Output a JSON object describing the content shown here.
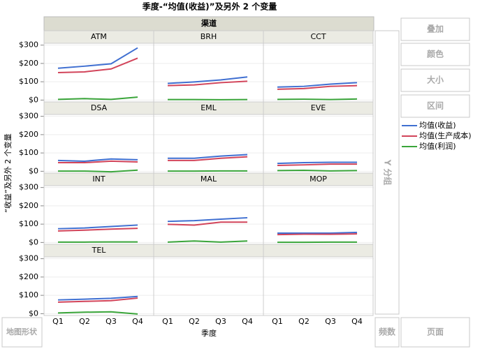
{
  "chart_data": {
    "type": "line",
    "title": "季度-“均值(收益)”及另外 2 个变量",
    "facet_label": "渠道",
    "x_label": "季度",
    "y_label": "“收益”及另外 2 个变量",
    "categories": [
      "Q1",
      "Q2",
      "Q3",
      "Q4"
    ],
    "ylim": [
      -10,
      310
    ],
    "yticks": [
      {
        "value": 0,
        "label": "$0"
      },
      {
        "value": 100,
        "label": "$100"
      },
      {
        "value": 200,
        "label": "$200"
      },
      {
        "value": 300,
        "label": "$300"
      }
    ],
    "series": [
      {
        "name": "均值(收益)",
        "color": "#3f6fd1"
      },
      {
        "name": "均值(生产成本)",
        "color": "#d2445a"
      },
      {
        "name": "均值(利润)",
        "color": "#3aa53a"
      }
    ],
    "panels": [
      {
        "name": "ATM",
        "values": [
          [
            174,
            185,
            198,
            285
          ],
          [
            150,
            154,
            170,
            229
          ],
          [
            4,
            8,
            4,
            16
          ]
        ]
      },
      {
        "name": "BRH",
        "values": [
          [
            91,
            99,
            110,
            126
          ],
          [
            79,
            83,
            95,
            103
          ],
          [
            3,
            3,
            2,
            3
          ]
        ]
      },
      {
        "name": "CCT",
        "values": [
          [
            71,
            75,
            87,
            95
          ],
          [
            59,
            63,
            75,
            79
          ],
          [
            4,
            5,
            3,
            6
          ]
        ]
      },
      {
        "name": "DSA",
        "values": [
          [
            59,
            55,
            67,
            63
          ],
          [
            47,
            47,
            55,
            51
          ],
          [
            1,
            1,
            -3,
            6
          ]
        ]
      },
      {
        "name": "EML",
        "values": [
          [
            71,
            71,
            83,
            91
          ],
          [
            59,
            59,
            71,
            79
          ],
          [
            1,
            1,
            2,
            2
          ]
        ]
      },
      {
        "name": "EVE",
        "values": [
          [
            43,
            47,
            49,
            49
          ],
          [
            32,
            35,
            39,
            39
          ],
          [
            4,
            5,
            2,
            4
          ]
        ]
      },
      {
        "name": "INT",
        "values": [
          [
            75,
            79,
            87,
            95
          ],
          [
            63,
            67,
            73,
            77
          ],
          [
            2,
            2,
            3,
            3
          ]
        ]
      },
      {
        "name": "MAL",
        "values": [
          [
            115,
            119,
            127,
            135
          ],
          [
            99,
            95,
            111,
            111
          ],
          [
            2,
            8,
            2,
            8
          ]
        ]
      },
      {
        "name": "MOP",
        "values": [
          [
            51,
            51,
            51,
            55
          ],
          [
            43,
            45,
            45,
            47
          ],
          [
            1,
            1,
            2,
            2
          ]
        ]
      },
      {
        "name": "TEL",
        "values": [
          [
            75,
            79,
            84,
            94
          ],
          [
            63,
            67,
            71,
            85
          ],
          [
            4,
            8,
            10,
            -2
          ]
        ]
      }
    ]
  },
  "ui": {
    "buttons": [
      "叠加",
      "颜色",
      "大小",
      "区间"
    ],
    "y_group": "Y 分组",
    "map_shape": "地图形状",
    "freq": "频数",
    "page": "页面"
  }
}
